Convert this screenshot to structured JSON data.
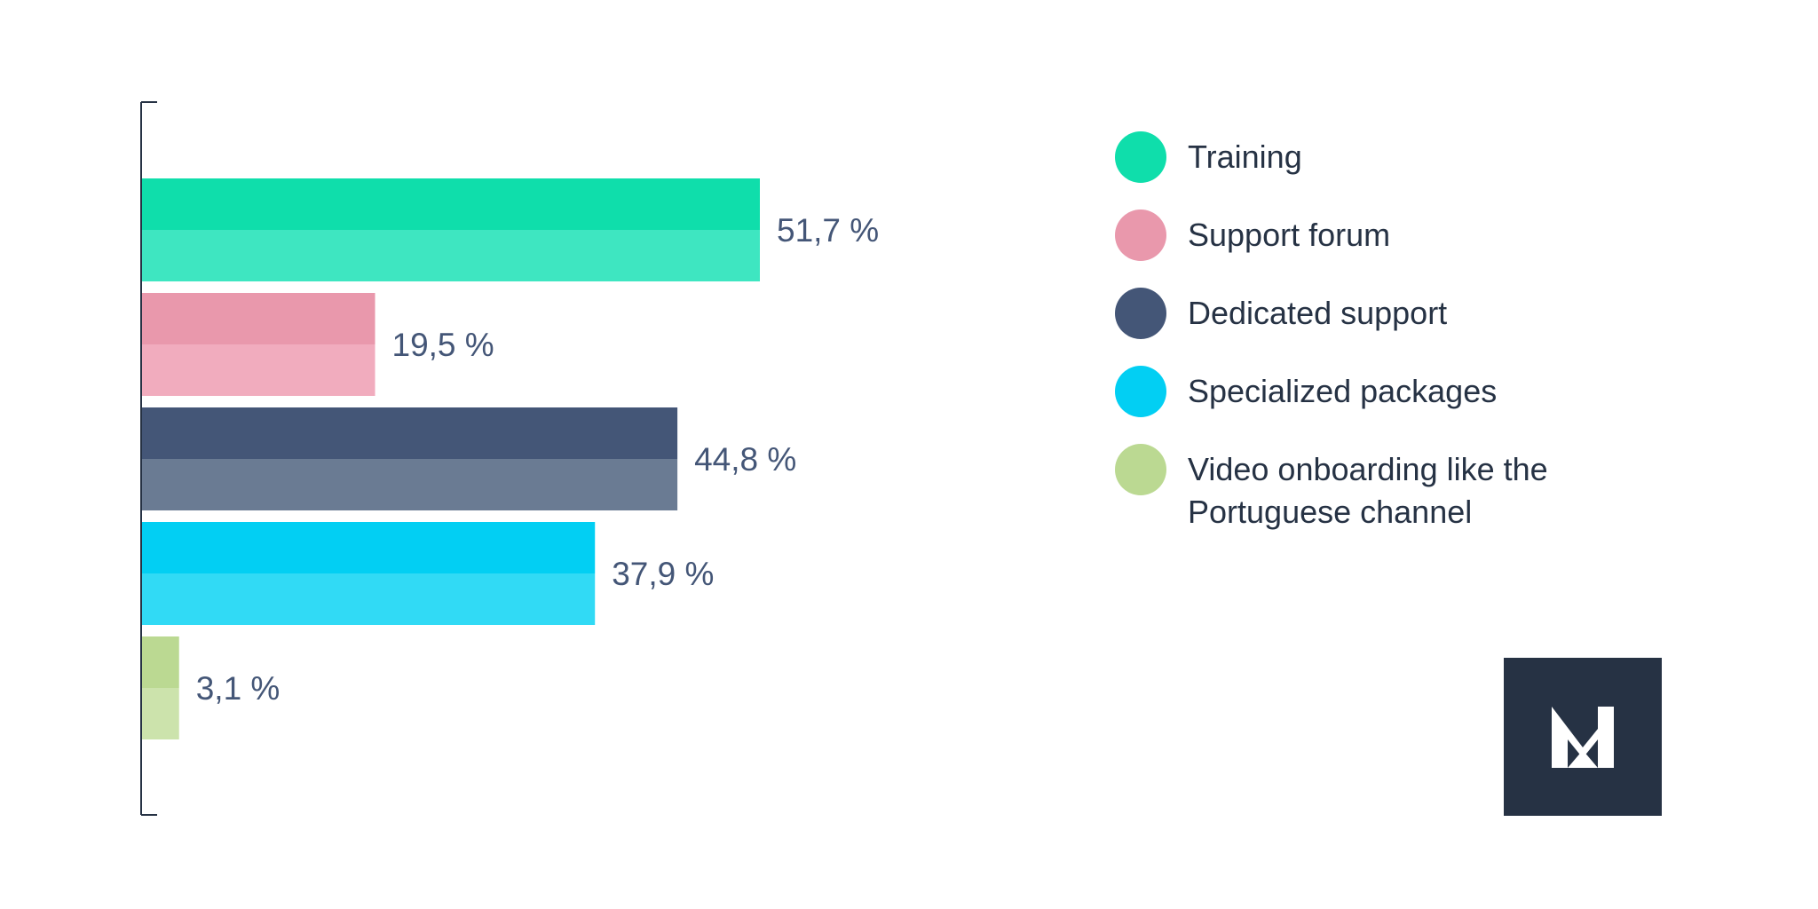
{
  "chart_data": {
    "type": "bar",
    "orientation": "horizontal",
    "categories": [
      "Training",
      "Support forum",
      "Dedicated support",
      "Specialized packages",
      "Video onboarding like the Portuguese channel"
    ],
    "values": [
      51.7,
      19.5,
      44.8,
      37.9,
      3.1
    ],
    "value_labels": [
      "51,7 %",
      "19,5 %",
      "44,8 %",
      "37,9 %",
      "3,1 %"
    ],
    "colors_top": [
      "#0fdeab",
      "#e998ac",
      "#445677",
      "#02cff3",
      "#bbd992"
    ],
    "colors_bottom": [
      "#3ee6c1",
      "#f1acbe",
      "#6a7b93",
      "#31daf5",
      "#cce3ac"
    ],
    "xlim": [
      0,
      51.7
    ],
    "grid": false,
    "legend_position": "right"
  },
  "legend": {
    "items": [
      {
        "label": "Training",
        "color": "#0fdeab"
      },
      {
        "label": "Support forum",
        "color": "#e998ac"
      },
      {
        "label": "Dedicated support",
        "color": "#445677"
      },
      {
        "label": "Specialized packages",
        "color": "#02cff3"
      },
      {
        "label": "Video onboarding like the Portuguese channel",
        "color": "#bbd992"
      }
    ]
  },
  "logo": {
    "icon": "nm-monogram-logo-icon",
    "background": "#263244",
    "foreground": "#ffffff"
  },
  "colors": {
    "axis": "#263244",
    "label_text": "#445677",
    "legend_text": "#263244"
  }
}
